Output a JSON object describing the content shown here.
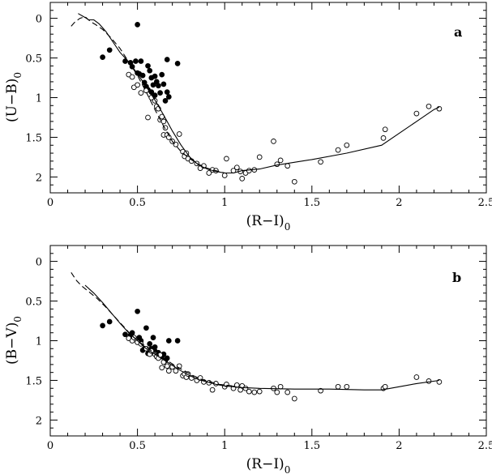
{
  "chart_data": [
    {
      "type": "scatter",
      "panel_label": "a",
      "xlabel": "(R−I)",
      "xlabel_sub": "0",
      "ylabel": "(U−B)",
      "ylabel_sub": "0",
      "xlim": [
        0,
        2.5
      ],
      "ylim": [
        -0.2,
        2.2
      ],
      "y_inverted": true,
      "x_ticks": [
        0,
        0.5,
        1,
        1.5,
        2,
        2.5
      ],
      "x_tick_labels": [
        "0",
        "0.5",
        "1",
        "1.5",
        "2",
        "2.5"
      ],
      "y_ticks": [
        0,
        0.5,
        1,
        1.5,
        2
      ],
      "y_tick_labels": [
        "0",
        "0.5",
        "1",
        "1.5",
        "2"
      ],
      "grid": false,
      "series": [
        {
          "style": "filled",
          "points": [
            [
              0.3,
              0.49
            ],
            [
              0.34,
              0.4
            ],
            [
              0.43,
              0.54
            ],
            [
              0.46,
              0.56
            ],
            [
              0.47,
              0.61
            ],
            [
              0.49,
              0.54
            ],
            [
              0.5,
              0.08
            ],
            [
              0.5,
              0.69
            ],
            [
              0.51,
              0.7
            ],
            [
              0.52,
              0.54
            ],
            [
              0.53,
              0.72
            ],
            [
              0.54,
              0.81
            ],
            [
              0.55,
              0.86
            ],
            [
              0.56,
              0.6
            ],
            [
              0.56,
              0.9
            ],
            [
              0.57,
              0.66
            ],
            [
              0.58,
              0.75
            ],
            [
              0.58,
              0.93
            ],
            [
              0.59,
              0.84
            ],
            [
              0.6,
              0.73
            ],
            [
              0.6,
              0.97
            ],
            [
              0.61,
              0.8
            ],
            [
              0.62,
              0.85
            ],
            [
              0.63,
              0.94
            ],
            [
              0.64,
              0.71
            ],
            [
              0.65,
              0.83
            ],
            [
              0.66,
              1.04
            ],
            [
              0.67,
              0.52
            ],
            [
              0.67,
              0.93
            ],
            [
              0.68,
              0.99
            ],
            [
              0.73,
              0.57
            ]
          ]
        },
        {
          "style": "open",
          "points": [
            [
              0.45,
              0.71
            ],
            [
              0.47,
              0.74
            ],
            [
              0.48,
              0.87
            ],
            [
              0.5,
              0.84
            ],
            [
              0.52,
              0.94
            ],
            [
              0.55,
              0.91
            ],
            [
              0.56,
              1.25
            ],
            [
              0.58,
              1.0
            ],
            [
              0.6,
              1.04
            ],
            [
              0.61,
              1.11
            ],
            [
              0.62,
              1.14
            ],
            [
              0.63,
              1.28
            ],
            [
              0.64,
              1.24
            ],
            [
              0.65,
              1.3
            ],
            [
              0.65,
              1.47
            ],
            [
              0.66,
              1.38
            ],
            [
              0.67,
              1.47
            ],
            [
              0.68,
              1.5
            ],
            [
              0.7,
              1.55
            ],
            [
              0.72,
              1.59
            ],
            [
              0.74,
              1.46
            ],
            [
              0.76,
              1.68
            ],
            [
              0.77,
              1.74
            ],
            [
              0.78,
              1.7
            ],
            [
              0.79,
              1.77
            ],
            [
              0.81,
              1.8
            ],
            [
              0.84,
              1.83
            ],
            [
              0.86,
              1.89
            ],
            [
              0.88,
              1.86
            ],
            [
              0.91,
              1.95
            ],
            [
              0.93,
              1.91
            ],
            [
              0.95,
              1.92
            ],
            [
              1.0,
              1.98
            ],
            [
              1.01,
              1.77
            ],
            [
              1.05,
              1.92
            ],
            [
              1.07,
              1.88
            ],
            [
              1.09,
              1.93
            ],
            [
              1.1,
              2.02
            ],
            [
              1.12,
              1.95
            ],
            [
              1.14,
              1.92
            ],
            [
              1.17,
              1.91
            ],
            [
              1.2,
              1.75
            ],
            [
              1.28,
              1.55
            ],
            [
              1.3,
              1.84
            ],
            [
              1.32,
              1.79
            ],
            [
              1.36,
              1.86
            ],
            [
              1.4,
              2.06
            ],
            [
              1.55,
              1.81
            ],
            [
              1.65,
              1.66
            ],
            [
              1.7,
              1.6
            ],
            [
              1.91,
              1.51
            ],
            [
              1.92,
              1.4
            ],
            [
              2.1,
              1.2
            ],
            [
              2.17,
              1.11
            ],
            [
              2.23,
              1.14
            ]
          ]
        },
        {
          "style": "solid-line",
          "points": [
            [
              0.16,
              -0.06
            ],
            [
              0.2,
              -0.01
            ],
            [
              0.22,
              0.02
            ],
            [
              0.25,
              0.02
            ],
            [
              0.28,
              0.07
            ],
            [
              0.32,
              0.17
            ],
            [
              0.36,
              0.3
            ],
            [
              0.4,
              0.43
            ],
            [
              0.45,
              0.55
            ],
            [
              0.5,
              0.7
            ],
            [
              0.55,
              0.86
            ],
            [
              0.6,
              1.03
            ],
            [
              0.65,
              1.22
            ],
            [
              0.7,
              1.42
            ],
            [
              0.75,
              1.6
            ],
            [
              0.8,
              1.75
            ],
            [
              0.85,
              1.85
            ],
            [
              0.9,
              1.9
            ],
            [
              0.95,
              1.93
            ],
            [
              1.0,
              1.95
            ],
            [
              1.05,
              1.95
            ],
            [
              1.1,
              1.92
            ],
            [
              1.2,
              1.9
            ],
            [
              1.3,
              1.85
            ],
            [
              1.5,
              1.78
            ],
            [
              1.7,
              1.7
            ],
            [
              1.9,
              1.6
            ],
            [
              2.0,
              1.45
            ],
            [
              2.1,
              1.3
            ],
            [
              2.2,
              1.15
            ],
            [
              2.23,
              1.12
            ]
          ]
        },
        {
          "style": "dashed-line",
          "points": [
            [
              0.12,
              0.1
            ],
            [
              0.14,
              0.05
            ],
            [
              0.17,
              0.0
            ],
            [
              0.2,
              -0.02
            ],
            [
              0.23,
              0.04
            ],
            [
              0.26,
              0.08
            ],
            [
              0.3,
              0.14
            ],
            [
              0.35,
              0.25
            ],
            [
              0.4,
              0.38
            ],
            [
              0.45,
              0.55
            ],
            [
              0.5,
              0.72
            ],
            [
              0.55,
              0.93
            ],
            [
              0.6,
              1.15
            ],
            [
              0.65,
              1.36
            ],
            [
              0.7,
              1.55
            ],
            [
              0.75,
              1.68
            ],
            [
              0.8,
              1.77
            ],
            [
              0.85,
              1.84
            ],
            [
              0.9,
              1.89
            ],
            [
              0.95,
              1.92
            ],
            [
              1.0,
              1.95
            ],
            [
              1.05,
              1.95
            ]
          ]
        }
      ]
    },
    {
      "type": "scatter",
      "panel_label": "b",
      "xlabel": "(R−I)",
      "xlabel_sub": "0",
      "ylabel": "(B−V)",
      "ylabel_sub": "0",
      "xlim": [
        0,
        2.5
      ],
      "ylim": [
        -0.2,
        2.2
      ],
      "y_inverted": true,
      "x_ticks": [
        0,
        0.5,
        1,
        1.5,
        2,
        2.5
      ],
      "x_tick_labels": [
        "0",
        "0.5",
        "1",
        "1.5",
        "2",
        "2.5"
      ],
      "y_ticks": [
        0,
        0.5,
        1,
        1.5,
        2
      ],
      "y_tick_labels": [
        "0",
        "0.5",
        "1",
        "1.5",
        "2"
      ],
      "grid": false,
      "series": [
        {
          "style": "filled",
          "points": [
            [
              0.3,
              0.81
            ],
            [
              0.34,
              0.76
            ],
            [
              0.43,
              0.92
            ],
            [
              0.46,
              0.93
            ],
            [
              0.47,
              0.9
            ],
            [
              0.5,
              0.63
            ],
            [
              0.51,
              0.96
            ],
            [
              0.52,
              1.0
            ],
            [
              0.53,
              1.12
            ],
            [
              0.54,
              1.1
            ],
            [
              0.55,
              0.84
            ],
            [
              0.56,
              1.16
            ],
            [
              0.57,
              1.04
            ],
            [
              0.58,
              1.1
            ],
            [
              0.59,
              0.96
            ],
            [
              0.6,
              1.08
            ],
            [
              0.6,
              1.13
            ],
            [
              0.62,
              1.15
            ],
            [
              0.63,
              1.2
            ],
            [
              0.64,
              1.2
            ],
            [
              0.65,
              1.17
            ],
            [
              0.66,
              1.25
            ],
            [
              0.67,
              1.22
            ],
            [
              0.68,
              1.0
            ],
            [
              0.73,
              1.0
            ]
          ]
        },
        {
          "style": "open",
          "points": [
            [
              0.45,
              0.97
            ],
            [
              0.47,
              1.0
            ],
            [
              0.48,
              0.96
            ],
            [
              0.5,
              1.02
            ],
            [
              0.52,
              1.04
            ],
            [
              0.55,
              1.1
            ],
            [
              0.57,
              1.17
            ],
            [
              0.58,
              1.13
            ],
            [
              0.6,
              1.17
            ],
            [
              0.61,
              1.2
            ],
            [
              0.62,
              1.22
            ],
            [
              0.63,
              1.18
            ],
            [
              0.64,
              1.34
            ],
            [
              0.65,
              1.27
            ],
            [
              0.67,
              1.32
            ],
            [
              0.68,
              1.38
            ],
            [
              0.7,
              1.33
            ],
            [
              0.72,
              1.38
            ],
            [
              0.74,
              1.32
            ],
            [
              0.76,
              1.44
            ],
            [
              0.77,
              1.42
            ],
            [
              0.78,
              1.46
            ],
            [
              0.79,
              1.42
            ],
            [
              0.81,
              1.47
            ],
            [
              0.84,
              1.5
            ],
            [
              0.86,
              1.47
            ],
            [
              0.88,
              1.52
            ],
            [
              0.91,
              1.53
            ],
            [
              0.93,
              1.62
            ],
            [
              0.95,
              1.54
            ],
            [
              1.0,
              1.58
            ],
            [
              1.01,
              1.55
            ],
            [
              1.05,
              1.6
            ],
            [
              1.07,
              1.56
            ],
            [
              1.09,
              1.62
            ],
            [
              1.1,
              1.57
            ],
            [
              1.12,
              1.6
            ],
            [
              1.14,
              1.64
            ],
            [
              1.17,
              1.65
            ],
            [
              1.2,
              1.64
            ],
            [
              1.28,
              1.6
            ],
            [
              1.3,
              1.65
            ],
            [
              1.32,
              1.58
            ],
            [
              1.36,
              1.65
            ],
            [
              1.4,
              1.73
            ],
            [
              1.55,
              1.63
            ],
            [
              1.65,
              1.58
            ],
            [
              1.7,
              1.58
            ],
            [
              1.91,
              1.6
            ],
            [
              1.92,
              1.58
            ],
            [
              2.1,
              1.46
            ],
            [
              2.17,
              1.51
            ],
            [
              2.23,
              1.52
            ]
          ]
        },
        {
          "style": "solid-line",
          "points": [
            [
              0.2,
              0.3
            ],
            [
              0.25,
              0.4
            ],
            [
              0.3,
              0.52
            ],
            [
              0.35,
              0.65
            ],
            [
              0.4,
              0.78
            ],
            [
              0.45,
              0.9
            ],
            [
              0.5,
              1.0
            ],
            [
              0.55,
              1.1
            ],
            [
              0.6,
              1.17
            ],
            [
              0.65,
              1.24
            ],
            [
              0.7,
              1.31
            ],
            [
              0.75,
              1.38
            ],
            [
              0.8,
              1.44
            ],
            [
              0.85,
              1.49
            ],
            [
              0.9,
              1.52
            ],
            [
              0.95,
              1.55
            ],
            [
              1.0,
              1.57
            ],
            [
              1.1,
              1.59
            ],
            [
              1.2,
              1.6
            ],
            [
              1.4,
              1.61
            ],
            [
              1.6,
              1.61
            ],
            [
              1.8,
              1.62
            ],
            [
              1.9,
              1.62
            ],
            [
              2.0,
              1.58
            ],
            [
              2.1,
              1.54
            ],
            [
              2.23,
              1.5
            ]
          ]
        },
        {
          "style": "dashed-line",
          "points": [
            [
              0.12,
              0.14
            ],
            [
              0.15,
              0.24
            ],
            [
              0.18,
              0.31
            ],
            [
              0.22,
              0.38
            ],
            [
              0.27,
              0.47
            ],
            [
              0.32,
              0.58
            ],
            [
              0.37,
              0.7
            ],
            [
              0.42,
              0.82
            ],
            [
              0.47,
              0.94
            ],
            [
              0.52,
              1.03
            ],
            [
              0.57,
              1.11
            ],
            [
              0.62,
              1.18
            ],
            [
              0.67,
              1.25
            ],
            [
              0.72,
              1.32
            ],
            [
              0.77,
              1.38
            ],
            [
              0.82,
              1.44
            ],
            [
              0.87,
              1.49
            ],
            [
              0.92,
              1.52
            ],
            [
              0.97,
              1.55
            ],
            [
              1.05,
              1.57
            ]
          ]
        }
      ]
    }
  ]
}
